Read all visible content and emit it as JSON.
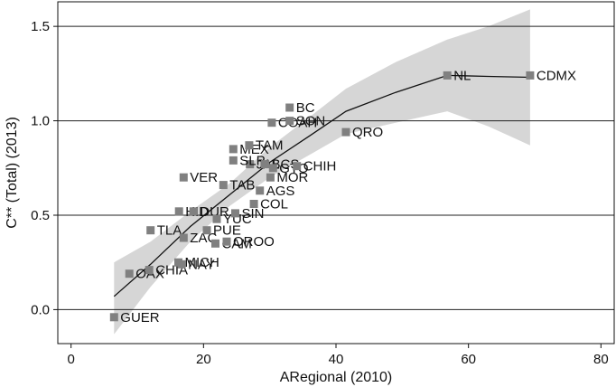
{
  "chart_data": {
    "type": "scatter",
    "title": "",
    "xlabel": "ARegional (2010)",
    "ylabel": "C** (Total) (2013)",
    "xlim": [
      -2,
      82
    ],
    "ylim": [
      -0.18,
      1.63
    ],
    "xticks": [
      0,
      20,
      40,
      60,
      80
    ],
    "yticks": [
      0.0,
      0.5,
      1.0,
      1.5
    ],
    "grid": "horizontal",
    "points": [
      {
        "label": "GUER",
        "x": 6.5,
        "y": -0.04
      },
      {
        "label": "OAX",
        "x": 8.8,
        "y": 0.19
      },
      {
        "label": "CHIA",
        "x": 11.8,
        "y": 0.21
      },
      {
        "label": "TLA",
        "x": 12.0,
        "y": 0.42
      },
      {
        "label": "NAY",
        "x": 16.7,
        "y": 0.24
      },
      {
        "label": "MICH",
        "x": 16.2,
        "y": 0.25
      },
      {
        "label": "ZAC",
        "x": 17.0,
        "y": 0.38
      },
      {
        "label": "HID",
        "x": 16.3,
        "y": 0.52
      },
      {
        "label": "DUR",
        "x": 18.5,
        "y": 0.52
      },
      {
        "label": "VER",
        "x": 17.0,
        "y": 0.7
      },
      {
        "label": "PUE",
        "x": 20.5,
        "y": 0.42
      },
      {
        "label": "CAM",
        "x": 21.8,
        "y": 0.35
      },
      {
        "label": "QROO",
        "x": 23.5,
        "y": 0.36
      },
      {
        "label": "YUC",
        "x": 22.0,
        "y": 0.48
      },
      {
        "label": "SIN",
        "x": 24.8,
        "y": 0.51
      },
      {
        "label": "TAB",
        "x": 23.0,
        "y": 0.66
      },
      {
        "label": "JAL",
        "x": 27.0,
        "y": 0.77
      },
      {
        "label": "SLP",
        "x": 24.5,
        "y": 0.79
      },
      {
        "label": "MEX",
        "x": 24.5,
        "y": 0.85
      },
      {
        "label": "TAM",
        "x": 26.9,
        "y": 0.87
      },
      {
        "label": "COL",
        "x": 27.6,
        "y": 0.56
      },
      {
        "label": "AGS",
        "x": 28.5,
        "y": 0.63
      },
      {
        "label": "MOR",
        "x": 30.1,
        "y": 0.7
      },
      {
        "label": "BCS",
        "x": 29.3,
        "y": 0.77
      },
      {
        "label": "GTO",
        "x": 30.5,
        "y": 0.75
      },
      {
        "label": "CHIH",
        "x": 34.1,
        "y": 0.76
      },
      {
        "label": "COAH",
        "x": 30.3,
        "y": 0.99
      },
      {
        "label": "SON",
        "x": 33.0,
        "y": 1.0
      },
      {
        "label": "BC",
        "x": 33.0,
        "y": 1.07
      },
      {
        "label": "QRO",
        "x": 41.5,
        "y": 0.94
      },
      {
        "label": "NL",
        "x": 56.8,
        "y": 1.24
      },
      {
        "label": "CDMX",
        "x": 69.3,
        "y": 1.24
      }
    ],
    "fit_line": [
      {
        "x": 6.5,
        "y": 0.07
      },
      {
        "x": 12,
        "y": 0.24
      },
      {
        "x": 18,
        "y": 0.44
      },
      {
        "x": 24,
        "y": 0.61
      },
      {
        "x": 30,
        "y": 0.78
      },
      {
        "x": 36,
        "y": 0.92
      },
      {
        "x": 41.5,
        "y": 1.05
      },
      {
        "x": 49,
        "y": 1.15
      },
      {
        "x": 56.8,
        "y": 1.24
      },
      {
        "x": 63,
        "y": 1.235
      },
      {
        "x": 69.3,
        "y": 1.23
      }
    ],
    "confidence_band": {
      "x": [
        6.5,
        12,
        18,
        24,
        30,
        36,
        41.5,
        49,
        56.8,
        63,
        69.3
      ],
      "upper": [
        0.25,
        0.36,
        0.52,
        0.67,
        0.86,
        1.02,
        1.17,
        1.31,
        1.43,
        1.5,
        1.59
      ],
      "lower": [
        -0.13,
        0.12,
        0.36,
        0.55,
        0.7,
        0.82,
        0.93,
        0.99,
        1.05,
        0.97,
        0.87
      ]
    },
    "colors": {
      "band": "#d6d6d6",
      "marker": "#808080",
      "line": "#111111",
      "grid": "#222222"
    }
  }
}
